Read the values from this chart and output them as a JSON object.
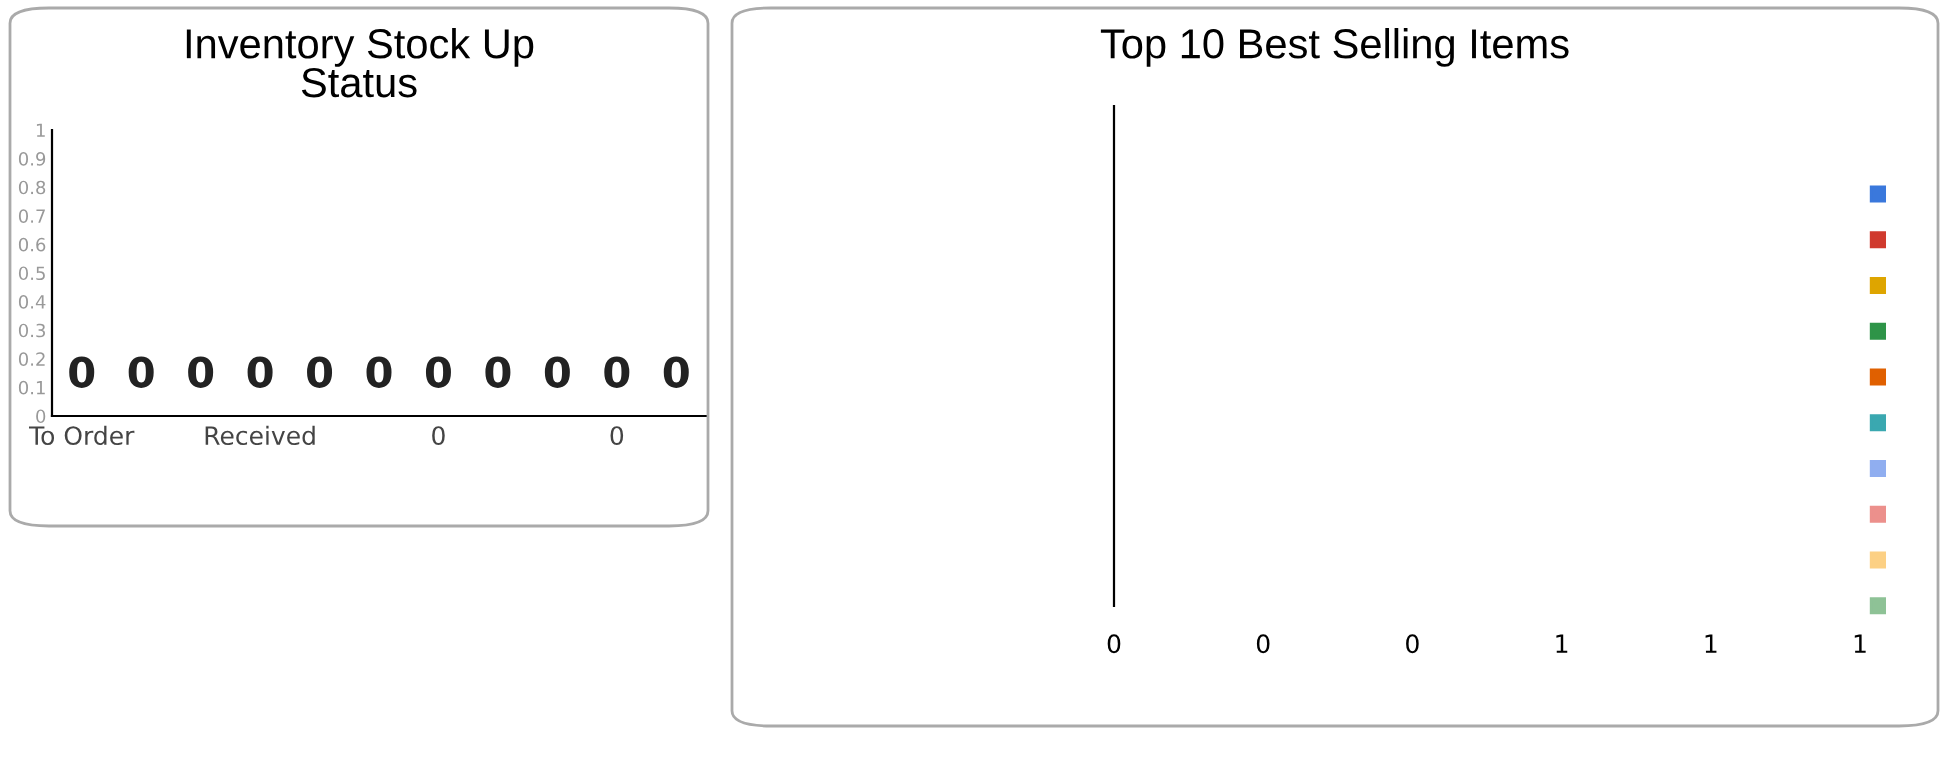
{
  "chart_data": [
    {
      "type": "bar",
      "title": "Inventory Stock Up\nStatus",
      "categories": [
        "To Order",
        null,
        null,
        "Received",
        null,
        null,
        "0",
        null,
        null,
        "0",
        null
      ],
      "values": [
        0,
        0,
        0,
        0,
        0,
        0,
        0,
        0,
        0,
        0,
        0
      ],
      "data_labels": true,
      "ylim": [
        0,
        1
      ],
      "yticks": [
        0,
        0.1,
        0.2,
        0.3,
        0.4,
        0.5,
        0.6,
        0.7,
        0.8,
        0.9,
        1
      ],
      "grid": false
    },
    {
      "type": "bar",
      "title": "Top 10 Best Selling Items",
      "orientation": "horizontal",
      "categories": [
        null
      ],
      "grid": false,
      "xlim": [
        0,
        1
      ],
      "xticks": [
        {
          "value": 0,
          "label": "0"
        },
        {
          "value": 0.2,
          "label": "0"
        },
        {
          "value": 0.4,
          "label": "0"
        },
        {
          "value": 0.6,
          "label": "1"
        },
        {
          "value": 0.8,
          "label": "1"
        },
        {
          "value": 1,
          "label": "1"
        }
      ],
      "tick_labels": "x",
      "series": [
        {
          "color": "#3a78dc",
          "values": [
            0
          ]
        },
        {
          "color": "#d03a2e",
          "values": [
            0
          ]
        },
        {
          "color": "#dea500",
          "values": [
            0
          ]
        },
        {
          "color": "#2e9448",
          "values": [
            0
          ]
        },
        {
          "color": "#e06000",
          "values": [
            0
          ]
        },
        {
          "color": "#3aa8b0",
          "values": [
            0
          ]
        },
        {
          "color": "#90aef0",
          "values": [
            0
          ]
        },
        {
          "color": "#ec908c",
          "values": [
            0
          ]
        },
        {
          "color": "#fcd084",
          "values": [
            0
          ]
        },
        {
          "color": "#8ec296",
          "values": [
            0
          ]
        }
      ]
    }
  ]
}
